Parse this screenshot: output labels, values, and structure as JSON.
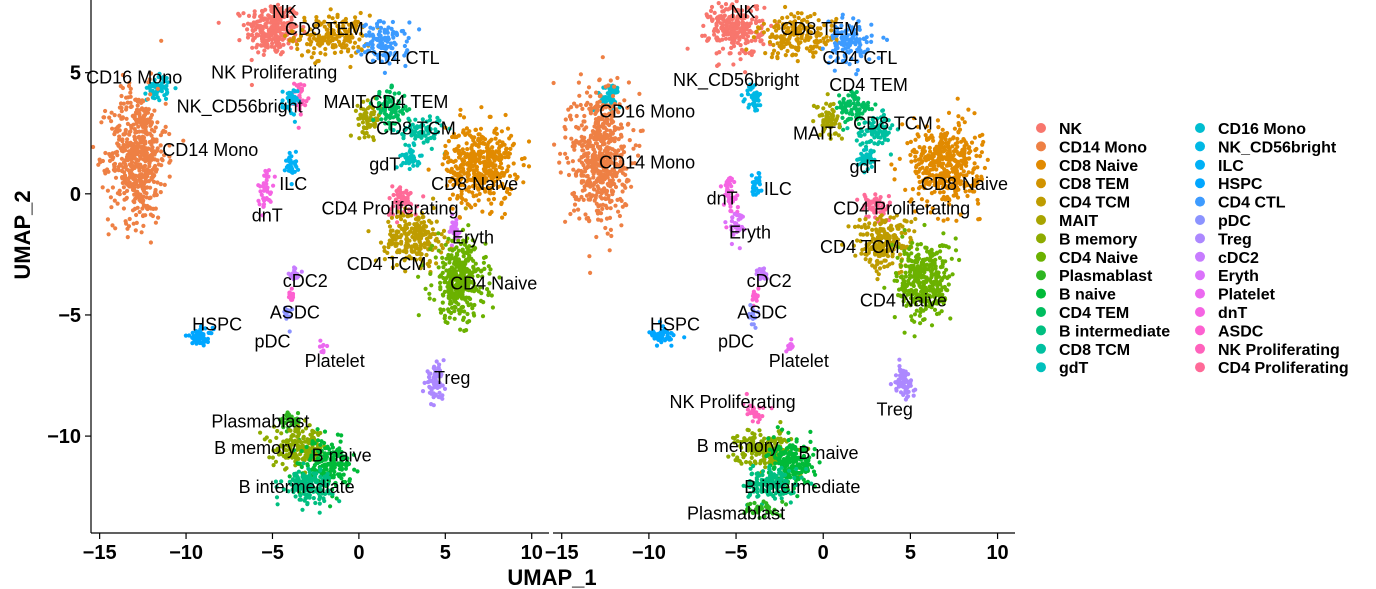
{
  "chart_data": [
    {
      "type": "scatter",
      "panel": "left",
      "xlabel": "UMAP_1",
      "ylabel": "UMAP_2",
      "xlim": [
        -15.5,
        11
      ],
      "ylim": [
        -14,
        8
      ],
      "xticks": [
        -15,
        -10,
        -5,
        0,
        5,
        10
      ],
      "yticks": [
        -10,
        -5,
        0,
        5
      ],
      "grid": false,
      "clusters": [
        {
          "name": "NK",
          "x": -5,
          "y": 6.8,
          "sx": 1.4,
          "sy": 1.0,
          "n": 260,
          "label": {
            "text": "NK",
            "x": -4.3,
            "y": 7.5
          }
        },
        {
          "name": "CD8 TEM",
          "x": -1.5,
          "y": 6.5,
          "sx": 2.0,
          "sy": 0.8,
          "n": 180,
          "label": {
            "text": "CD8 TEM",
            "x": -2.0,
            "y": 6.8
          }
        },
        {
          "name": "CD4 CTL",
          "x": 1.5,
          "y": 6.2,
          "sx": 1.2,
          "sy": 0.8,
          "n": 120,
          "label": {
            "text": "CD4 CTL",
            "x": 2.5,
            "y": 5.6
          }
        },
        {
          "name": "CD16 Mono",
          "x": -11.6,
          "y": 4.4,
          "sx": 0.6,
          "sy": 0.5,
          "n": 60,
          "label": {
            "text": "CD16 Mono",
            "x": -13.0,
            "y": 4.8
          }
        },
        {
          "name": "NK Proliferating",
          "x": -3.4,
          "y": 4.0,
          "sx": 0.3,
          "sy": 0.6,
          "n": 30,
          "label": {
            "text": "NK Proliferating",
            "x": -4.9,
            "y": 5.0
          }
        },
        {
          "name": "NK_CD56bright",
          "x": -4.0,
          "y": 3.8,
          "sx": 0.4,
          "sy": 0.5,
          "n": 40,
          "label": {
            "text": "NK_CD56bright",
            "x": -6.9,
            "y": 3.6
          }
        },
        {
          "name": "CD14 Mono",
          "x": -12.8,
          "y": 1.6,
          "sx": 1.5,
          "sy": 2.5,
          "n": 560,
          "label": {
            "text": "CD14 Mono",
            "x": -8.6,
            "y": 1.8
          }
        },
        {
          "name": "MAIT",
          "x": 0.6,
          "y": 3.1,
          "sx": 0.6,
          "sy": 0.6,
          "n": 70,
          "label": {
            "text": "MAIT",
            "x": -0.8,
            "y": 3.8
          }
        },
        {
          "name": "CD4 TEM",
          "x": 1.8,
          "y": 3.5,
          "sx": 0.9,
          "sy": 0.7,
          "n": 90,
          "label": {
            "text": "CD4 TEM",
            "x": 2.9,
            "y": 3.8
          }
        },
        {
          "name": "CD8 TCM",
          "x": 3.6,
          "y": 2.6,
          "sx": 1.2,
          "sy": 0.6,
          "n": 80,
          "label": {
            "text": "CD8 TCM",
            "x": 3.3,
            "y": 2.7
          }
        },
        {
          "name": "gdT",
          "x": 3.0,
          "y": 1.5,
          "sx": 0.5,
          "sy": 0.4,
          "n": 40,
          "label": {
            "text": "gdT",
            "x": 1.5,
            "y": 1.2
          }
        },
        {
          "name": "CD8 Naive",
          "x": 7.0,
          "y": 1.2,
          "sx": 1.8,
          "sy": 1.5,
          "n": 430,
          "label": {
            "text": "CD8 Naive",
            "x": 6.7,
            "y": 0.4
          }
        },
        {
          "name": "ILC",
          "x": -3.9,
          "y": 1.2,
          "sx": 0.3,
          "sy": 0.5,
          "n": 30,
          "label": {
            "text": "ILC",
            "x": -3.8,
            "y": 0.4
          }
        },
        {
          "name": "dnT",
          "x": -5.4,
          "y": 0.2,
          "sx": 0.4,
          "sy": 0.8,
          "n": 40,
          "label": {
            "text": "dnT",
            "x": -5.3,
            "y": -0.9
          }
        },
        {
          "name": "CD4 Proliferating",
          "x": 2.5,
          "y": -0.3,
          "sx": 0.8,
          "sy": 0.6,
          "n": 60,
          "label": {
            "text": "CD4 Proliferating",
            "x": 1.8,
            "y": -0.6
          }
        },
        {
          "name": "Eryth",
          "x": 5.5,
          "y": -1.5,
          "sx": 0.4,
          "sy": 0.5,
          "n": 30,
          "label": {
            "text": "Eryth",
            "x": 6.6,
            "y": -1.8
          }
        },
        {
          "name": "CD4 TCM",
          "x": 3.2,
          "y": -1.8,
          "sx": 1.5,
          "sy": 1.0,
          "n": 220,
          "label": {
            "text": "CD4 TCM",
            "x": 1.6,
            "y": -2.9
          }
        },
        {
          "name": "CD4 Naive",
          "x": 5.8,
          "y": -3.6,
          "sx": 1.4,
          "sy": 1.5,
          "n": 360,
          "label": {
            "text": "CD4 Naive",
            "x": 7.8,
            "y": -3.7
          }
        },
        {
          "name": "cDC2",
          "x": -3.7,
          "y": -3.3,
          "sx": 0.3,
          "sy": 0.3,
          "n": 20,
          "label": {
            "text": "cDC2",
            "x": -3.1,
            "y": -3.6
          }
        },
        {
          "name": "ASDC",
          "x": -3.9,
          "y": -4.2,
          "sx": 0.2,
          "sy": 0.3,
          "n": 15,
          "label": {
            "text": "ASDC",
            "x": -3.7,
            "y": -4.9
          }
        },
        {
          "name": "HSPC",
          "x": -9.2,
          "y": -5.9,
          "sx": 0.7,
          "sy": 0.3,
          "n": 50,
          "label": {
            "text": "HSPC",
            "x": -8.2,
            "y": -5.4
          }
        },
        {
          "name": "pDC",
          "x": -4.1,
          "y": -5.0,
          "sx": 0.2,
          "sy": 0.4,
          "n": 15,
          "label": {
            "text": "pDC",
            "x": -5.0,
            "y": -6.1
          }
        },
        {
          "name": "Platelet",
          "x": -2.1,
          "y": -6.3,
          "sx": 0.2,
          "sy": 0.2,
          "n": 10,
          "label": {
            "text": "Platelet",
            "x": -1.4,
            "y": -6.9
          }
        },
        {
          "name": "Treg",
          "x": 4.4,
          "y": -7.8,
          "sx": 0.5,
          "sy": 0.6,
          "n": 70,
          "label": {
            "text": "Treg",
            "x": 5.4,
            "y": -7.6
          }
        },
        {
          "name": "Plasmablast",
          "x": -4.0,
          "y": -9.4,
          "sx": 0.6,
          "sy": 0.4,
          "n": 40,
          "label": {
            "text": "Plasmablast",
            "x": -5.7,
            "y": -9.4
          }
        },
        {
          "name": "B memory",
          "x": -3.4,
          "y": -10.5,
          "sx": 1.4,
          "sy": 0.7,
          "n": 180,
          "label": {
            "text": "B memory",
            "x": -6.0,
            "y": -10.5
          }
        },
        {
          "name": "B naive",
          "x": -1.8,
          "y": -11.2,
          "sx": 1.2,
          "sy": 0.9,
          "n": 200,
          "label": {
            "text": "B naive",
            "x": -1.0,
            "y": -10.8
          }
        },
        {
          "name": "B intermediate",
          "x": -3.0,
          "y": -12.0,
          "sx": 1.3,
          "sy": 0.6,
          "n": 150,
          "label": {
            "text": "B intermediate",
            "x": -3.6,
            "y": -12.1
          }
        }
      ]
    },
    {
      "type": "scatter",
      "panel": "right",
      "xlabel": "UMAP_1",
      "ylabel": "",
      "xlim": [
        -15.5,
        11
      ],
      "ylim": [
        -14,
        8
      ],
      "xticks": [
        -15,
        -10,
        -5,
        0,
        5,
        10
      ],
      "yticks": [],
      "grid": false,
      "clusters": [
        {
          "name": "NK",
          "x": -5,
          "y": 6.8,
          "sx": 1.4,
          "sy": 1.0,
          "n": 260,
          "label": {
            "text": "NK",
            "x": -4.6,
            "y": 7.5
          }
        },
        {
          "name": "CD8 TEM",
          "x": -1.5,
          "y": 6.5,
          "sx": 2.0,
          "sy": 0.8,
          "n": 180,
          "label": {
            "text": "CD8 TEM",
            "x": -0.2,
            "y": 6.8
          }
        },
        {
          "name": "CD4 CTL",
          "x": 1.5,
          "y": 6.2,
          "sx": 1.2,
          "sy": 0.8,
          "n": 120,
          "label": {
            "text": "CD4 CTL",
            "x": 2.1,
            "y": 5.6
          }
        },
        {
          "name": "NK_CD56bright",
          "x": -4.0,
          "y": 4.0,
          "sx": 0.4,
          "sy": 0.5,
          "n": 40,
          "label": {
            "text": "NK_CD56bright",
            "x": -5.0,
            "y": 4.7
          }
        },
        {
          "name": "CD4 TEM",
          "x": 1.8,
          "y": 3.5,
          "sx": 0.9,
          "sy": 0.7,
          "n": 90,
          "label": {
            "text": "CD4 TEM",
            "x": 2.6,
            "y": 4.5
          }
        },
        {
          "name": "CD16 Mono",
          "x": -12.3,
          "y": 4.0,
          "sx": 0.6,
          "sy": 0.5,
          "n": 60,
          "label": {
            "text": "CD16 Mono",
            "x": -10.1,
            "y": 3.4
          }
        },
        {
          "name": "MAIT",
          "x": 0.3,
          "y": 3.1,
          "sx": 0.6,
          "sy": 0.6,
          "n": 70,
          "label": {
            "text": "MAIT",
            "x": -0.5,
            "y": 2.5
          }
        },
        {
          "name": "CD8 TCM",
          "x": 3.0,
          "y": 2.6,
          "sx": 1.0,
          "sy": 0.6,
          "n": 80,
          "label": {
            "text": "CD8 TCM",
            "x": 4.0,
            "y": 2.9
          }
        },
        {
          "name": "gdT",
          "x": 2.6,
          "y": 1.5,
          "sx": 0.5,
          "sy": 0.4,
          "n": 40,
          "label": {
            "text": "gdT",
            "x": 2.4,
            "y": 1.1
          }
        },
        {
          "name": "CD8 Naive",
          "x": 7.0,
          "y": 1.2,
          "sx": 1.8,
          "sy": 1.5,
          "n": 430,
          "label": {
            "text": "CD8 Naive",
            "x": 8.1,
            "y": 0.4
          }
        },
        {
          "name": "CD14 Mono",
          "x": -12.8,
          "y": 1.6,
          "sx": 1.5,
          "sy": 2.5,
          "n": 560,
          "label": {
            "text": "CD14 Mono",
            "x": -10.1,
            "y": 1.3
          }
        },
        {
          "name": "ILC",
          "x": -3.9,
          "y": 0.5,
          "sx": 0.3,
          "sy": 0.5,
          "n": 30,
          "label": {
            "text": "ILC",
            "x": -2.6,
            "y": 0.2
          }
        },
        {
          "name": "dnT",
          "x": -5.4,
          "y": 0.0,
          "sx": 0.4,
          "sy": 0.8,
          "n": 40,
          "label": {
            "text": "dnT",
            "x": -5.8,
            "y": -0.2
          }
        },
        {
          "name": "CD4 Proliferating",
          "x": 3.0,
          "y": -0.5,
          "sx": 0.8,
          "sy": 0.6,
          "n": 60,
          "label": {
            "text": "CD4 Proliferating",
            "x": 4.5,
            "y": -0.6
          }
        },
        {
          "name": "Eryth",
          "x": -5.0,
          "y": -1.3,
          "sx": 0.4,
          "sy": 0.5,
          "n": 30,
          "label": {
            "text": "Eryth",
            "x": -4.2,
            "y": -1.6
          }
        },
        {
          "name": "CD4 TCM",
          "x": 3.5,
          "y": -2.0,
          "sx": 1.5,
          "sy": 1.0,
          "n": 220,
          "label": {
            "text": "CD4 TCM",
            "x": 2.1,
            "y": -2.2
          }
        },
        {
          "name": "cDC2",
          "x": -3.5,
          "y": -3.3,
          "sx": 0.3,
          "sy": 0.3,
          "n": 20,
          "label": {
            "text": "cDC2",
            "x": -3.1,
            "y": -3.6
          }
        },
        {
          "name": "CD4 Naive",
          "x": 5.8,
          "y": -3.6,
          "sx": 1.4,
          "sy": 1.5,
          "n": 360,
          "label": {
            "text": "CD4 Naive",
            "x": 4.6,
            "y": -4.4
          }
        },
        {
          "name": "ASDC",
          "x": -3.9,
          "y": -4.2,
          "sx": 0.2,
          "sy": 0.3,
          "n": 15,
          "label": {
            "text": "ASDC",
            "x": -3.5,
            "y": -4.9
          }
        },
        {
          "name": "HSPC",
          "x": -9.2,
          "y": -5.9,
          "sx": 0.7,
          "sy": 0.3,
          "n": 50,
          "label": {
            "text": "HSPC",
            "x": -8.5,
            "y": -5.4
          }
        },
        {
          "name": "pDC",
          "x": -4.1,
          "y": -5.0,
          "sx": 0.2,
          "sy": 0.4,
          "n": 15,
          "label": {
            "text": "pDC",
            "x": -5.0,
            "y": -6.1
          }
        },
        {
          "name": "Platelet",
          "x": -1.9,
          "y": -6.3,
          "sx": 0.2,
          "sy": 0.2,
          "n": 10,
          "label": {
            "text": "Platelet",
            "x": -1.4,
            "y": -6.9
          }
        },
        {
          "name": "Treg",
          "x": 4.6,
          "y": -7.8,
          "sx": 0.5,
          "sy": 0.6,
          "n": 70,
          "label": {
            "text": "Treg",
            "x": 4.1,
            "y": -8.9
          }
        },
        {
          "name": "NK Proliferating",
          "x": -4.0,
          "y": -9.0,
          "sx": 0.6,
          "sy": 0.4,
          "n": 30,
          "label": {
            "text": "NK Proliferating",
            "x": -5.2,
            "y": -8.6
          }
        },
        {
          "name": "B memory",
          "x": -3.4,
          "y": -10.5,
          "sx": 1.4,
          "sy": 0.7,
          "n": 180,
          "label": {
            "text": "B memory",
            "x": -4.9,
            "y": -10.4
          }
        },
        {
          "name": "B naive",
          "x": -1.8,
          "y": -11.2,
          "sx": 1.2,
          "sy": 0.9,
          "n": 200,
          "label": {
            "text": "B naive",
            "x": 0.3,
            "y": -10.7
          }
        },
        {
          "name": "B intermediate",
          "x": -3.0,
          "y": -12.0,
          "sx": 1.3,
          "sy": 0.6,
          "n": 150,
          "label": {
            "text": "B intermediate",
            "x": -1.2,
            "y": -12.1
          }
        },
        {
          "name": "Plasmablast",
          "x": -3.5,
          "y": -13.0,
          "sx": 0.8,
          "sy": 0.3,
          "n": 40,
          "label": {
            "text": "Plasmablast",
            "x": -5.0,
            "y": -13.2
          }
        }
      ]
    }
  ],
  "legend": {
    "placement": "right",
    "items": [
      {
        "name": "NK",
        "color": "#F8766D"
      },
      {
        "name": "CD14 Mono",
        "color": "#EE8044"
      },
      {
        "name": "CD8 Naive",
        "color": "#E18A00"
      },
      {
        "name": "CD8 TEM",
        "color": "#D19300"
      },
      {
        "name": "CD4 TCM",
        "color": "#BE9C00"
      },
      {
        "name": "MAIT",
        "color": "#A8A400"
      },
      {
        "name": "B memory",
        "color": "#8EAB00"
      },
      {
        "name": "CD4 Naive",
        "color": "#6BB100"
      },
      {
        "name": "Plasmablast",
        "color": "#2EB621"
      },
      {
        "name": "B naive",
        "color": "#00BA38"
      },
      {
        "name": "CD4 TEM",
        "color": "#00BD5F"
      },
      {
        "name": "B intermediate",
        "color": "#00BF80"
      },
      {
        "name": "CD8 TCM",
        "color": "#00C0A0"
      },
      {
        "name": "gdT",
        "color": "#00C0BC"
      },
      {
        "name": "CD16 Mono",
        "color": "#00BDD0"
      },
      {
        "name": "NK_CD56bright",
        "color": "#00B8E5"
      },
      {
        "name": "ILC",
        "color": "#00B0F6"
      },
      {
        "name": "HSPC",
        "color": "#00A6FF"
      },
      {
        "name": "CD4 CTL",
        "color": "#3D9BFF"
      },
      {
        "name": "pDC",
        "color": "#8B93FF"
      },
      {
        "name": "Treg",
        "color": "#AC88FF"
      },
      {
        "name": "cDC2",
        "color": "#C77CFF"
      },
      {
        "name": "Eryth",
        "color": "#DB72FB"
      },
      {
        "name": "Platelet",
        "color": "#EB69F0"
      },
      {
        "name": "dnT",
        "color": "#F564E3"
      },
      {
        "name": "ASDC",
        "color": "#FD61D1"
      },
      {
        "name": "NK Proliferating",
        "color": "#FF62BC"
      },
      {
        "name": "CD4 Proliferating",
        "color": "#FF6A98"
      }
    ]
  }
}
